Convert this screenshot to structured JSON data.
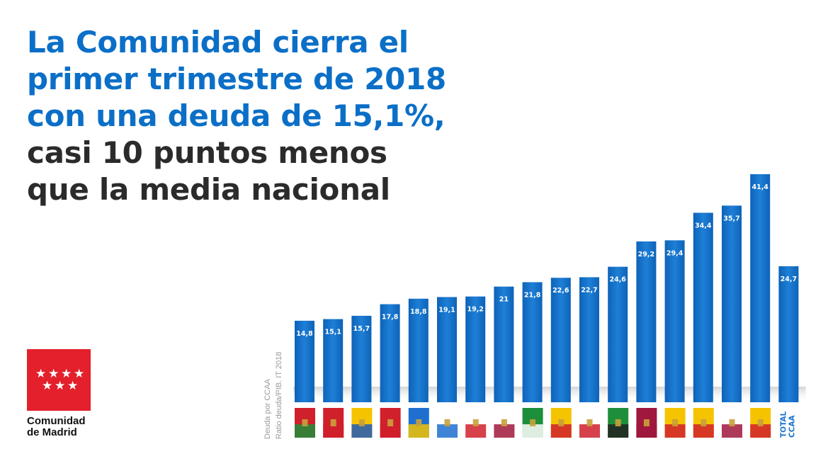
{
  "headline": {
    "line1": "La Comunidad cierra el",
    "line2": "primer trimestre de 2018",
    "line3": "con una deuda de 15,1%,",
    "line4": "casi 10 puntos menos",
    "line5": "que la media nacional"
  },
  "logo": {
    "line1": "Comunidad",
    "line2": "de Madrid"
  },
  "colors": {
    "headline_blue": "#0b6fc7",
    "headline_dark": "#2b2b2b",
    "bar": "#1a74cc",
    "logo_red": "#e3202b"
  },
  "chart_data": {
    "type": "bar",
    "subtitle_line1": "Deuda por CCAA",
    "subtitle_line2": "Ratio deuda/PIB. IT 2018",
    "categories": [
      "País Vasco",
      "Madrid",
      "Canarias",
      "Navarra",
      "Asturias",
      "Galicia",
      "Cantabria",
      "Castilla y León",
      "Andalucía",
      "Aragón",
      "La Rioja",
      "Extremadura",
      "Murcia",
      "Baleares",
      "Cataluña",
      "Castilla-La Mancha",
      "C. Valenciana",
      "TOTAL CCAA"
    ],
    "values": [
      14.8,
      15.1,
      15.7,
      17.8,
      18.8,
      19.1,
      19.2,
      21,
      21.8,
      22.6,
      22.7,
      24.6,
      29.2,
      29.4,
      34.4,
      35.7,
      41.4,
      24.7
    ],
    "labels": [
      "14,8",
      "15,1",
      "15,7",
      "17,8",
      "18,8",
      "19,1",
      "19,2",
      "21",
      "21,8",
      "22,6",
      "22,7",
      "24,6",
      "29,2",
      "29,4",
      "34,4",
      "35,7",
      "41,4",
      "24,7"
    ],
    "total_label_line1": "TOTAL",
    "total_label_line2": "CCAA",
    "ylim": [
      0,
      41.4
    ],
    "grid": false
  }
}
